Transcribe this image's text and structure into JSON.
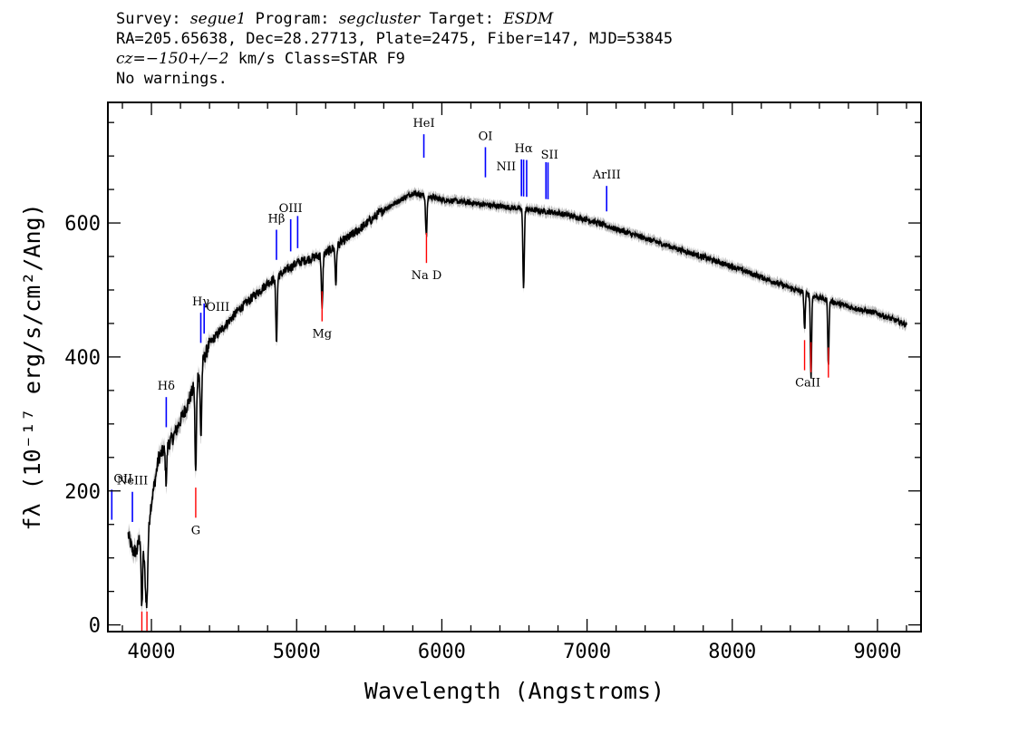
{
  "header": {
    "line1": {
      "survey_label": "Survey: ",
      "survey": "segue1",
      "program_label": " Program: ",
      "program": "segcluster",
      "target_label": " Target: ",
      "target": "ESDM"
    },
    "line2": "RA=205.65638, Dec=28.27713, Plate=2475, Fiber=147, MJD=53845",
    "line3": {
      "cz_label": "cz=−150+/−2",
      "cz_units": " km/s Class=STAR F9"
    },
    "line4": "No warnings."
  },
  "chart_data": {
    "type": "line",
    "xlabel": "Wavelength (Angstroms)",
    "ylabel": "fλ (10⁻¹⁷ erg/s/cm²/Ang)",
    "xlim": [
      3700,
      9300
    ],
    "ylim": [
      -10,
      780
    ],
    "x_ticks": [
      4000,
      5000,
      6000,
      7000,
      8000,
      9000
    ],
    "y_ticks": [
      0,
      200,
      400,
      600
    ],
    "spectrum_anchors": {
      "x": [
        3840,
        3870,
        3900,
        3935,
        3960,
        3990,
        4050,
        4150,
        4250,
        4400,
        4600,
        4800,
        5000,
        5200,
        5400,
        5600,
        5800,
        6000,
        6200,
        6400,
        6600,
        6800,
        7000,
        7500,
        8000,
        8500,
        8800,
        9000,
        9200
      ],
      "y": [
        135,
        110,
        110,
        150,
        60,
        170,
        250,
        280,
        330,
        420,
        470,
        510,
        540,
        555,
        585,
        620,
        645,
        635,
        630,
        625,
        620,
        615,
        605,
        570,
        535,
        495,
        475,
        465,
        448
      ]
    },
    "absorption_dips": [
      {
        "x": 3934,
        "y": 25
      },
      {
        "x": 3969,
        "y": 30
      },
      {
        "x": 4101,
        "y": 215
      },
      {
        "x": 4305,
        "y": 225
      },
      {
        "x": 4341,
        "y": 280
      },
      {
        "x": 4861,
        "y": 425
      },
      {
        "x": 5175,
        "y": 470
      },
      {
        "x": 5270,
        "y": 510
      },
      {
        "x": 5893,
        "y": 580
      },
      {
        "x": 6563,
        "y": 505
      },
      {
        "x": 8498,
        "y": 440
      },
      {
        "x": 8542,
        "y": 368
      },
      {
        "x": 8662,
        "y": 388
      }
    ],
    "emission_lines": [
      {
        "label": "OII",
        "x": 3727
      },
      {
        "label": "NeIII",
        "x": 3869
      },
      {
        "label": "Hδ",
        "x": 4102
      },
      {
        "label": "Hγ",
        "x": 4340
      },
      {
        "label": "OIII",
        "x": 4363
      },
      {
        "label": "Hβ",
        "x": 4861
      },
      {
        "label": "OIII",
        "x": 4959
      },
      {
        "label": "OIII",
        "x": 5007
      },
      {
        "label": "HeI",
        "x": 5876
      },
      {
        "label": "OI",
        "x": 6300
      },
      {
        "label": "NII",
        "x": 6548
      },
      {
        "label": "Hα",
        "x": 6563
      },
      {
        "label": "NII",
        "x": 6584
      },
      {
        "label": "SII",
        "x": 6717
      },
      {
        "label": "SII",
        "x": 6731
      },
      {
        "label": "ArIII",
        "x": 7135
      }
    ],
    "absorption_lines": [
      {
        "label": "CaII",
        "x": 3934
      },
      {
        "label": "CaII",
        "x": 3969
      },
      {
        "label": "G",
        "x": 4305
      },
      {
        "label": "Mg",
        "x": 5175
      },
      {
        "label": "Na D",
        "x": 5894
      },
      {
        "label": "CaII",
        "x": 8498
      },
      {
        "label": "CaII",
        "x": 8542
      },
      {
        "label": "CaII",
        "x": 8662
      }
    ],
    "colors": {
      "spectrum": "#000000",
      "error_band": "#b8b8b8",
      "emission": "#0000ff",
      "absorption": "#ff0000"
    }
  }
}
